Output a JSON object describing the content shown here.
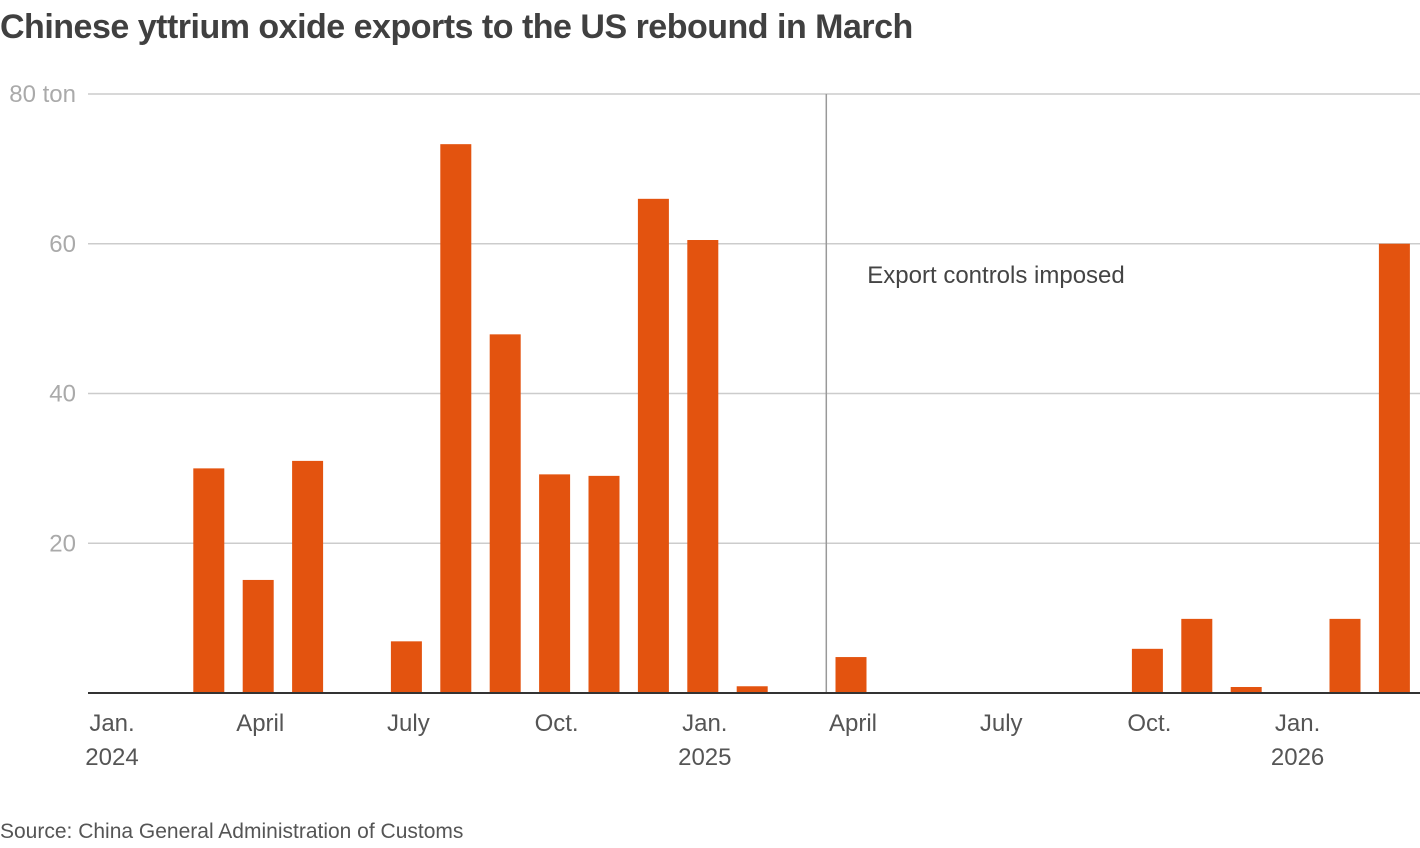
{
  "chart_data": {
    "type": "bar",
    "title": "Chinese yttrium oxide exports to the US rebound in March",
    "source": "Source: China General Administration of Customs",
    "y_unit": "ton",
    "ylim": [
      0,
      80
    ],
    "y_ticks": [
      20,
      40,
      60,
      80
    ],
    "y_tick_labels": [
      "20",
      "40",
      "60",
      "80 ton"
    ],
    "grid": true,
    "bar_color": "#e3530f",
    "categories": [
      "2024-01",
      "2024-02",
      "2024-03",
      "2024-04",
      "2024-05",
      "2024-06",
      "2024-07",
      "2024-08",
      "2024-09",
      "2024-10",
      "2024-11",
      "2024-12",
      "2025-01",
      "2025-02",
      "2025-03",
      "2025-04",
      "2025-05",
      "2025-06",
      "2025-07",
      "2025-08",
      "2025-09",
      "2025-10",
      "2025-11",
      "2025-12",
      "2026-01",
      "2026-02",
      "2026-03"
    ],
    "values": [
      0,
      0,
      30,
      15.1,
      31,
      0,
      6.9,
      73.3,
      47.9,
      29.2,
      29,
      66,
      60.5,
      0.9,
      0,
      4.8,
      0,
      0,
      0,
      0,
      0,
      5.9,
      9.9,
      0.8,
      0,
      9.9,
      60
    ],
    "x_ticks": [
      {
        "index": 0,
        "label": "Jan.",
        "year": "2024"
      },
      {
        "index": 3,
        "label": "April",
        "year": ""
      },
      {
        "index": 6,
        "label": "July",
        "year": ""
      },
      {
        "index": 9,
        "label": "Oct.",
        "year": ""
      },
      {
        "index": 12,
        "label": "Jan.",
        "year": "2025"
      },
      {
        "index": 15,
        "label": "April",
        "year": ""
      },
      {
        "index": 18,
        "label": "July",
        "year": ""
      },
      {
        "index": 21,
        "label": "Oct.",
        "year": ""
      },
      {
        "index": 24,
        "label": "Jan.",
        "year": "2026"
      }
    ],
    "annotation": {
      "label": "Export controls imposed",
      "at_index": 14.5
    }
  }
}
